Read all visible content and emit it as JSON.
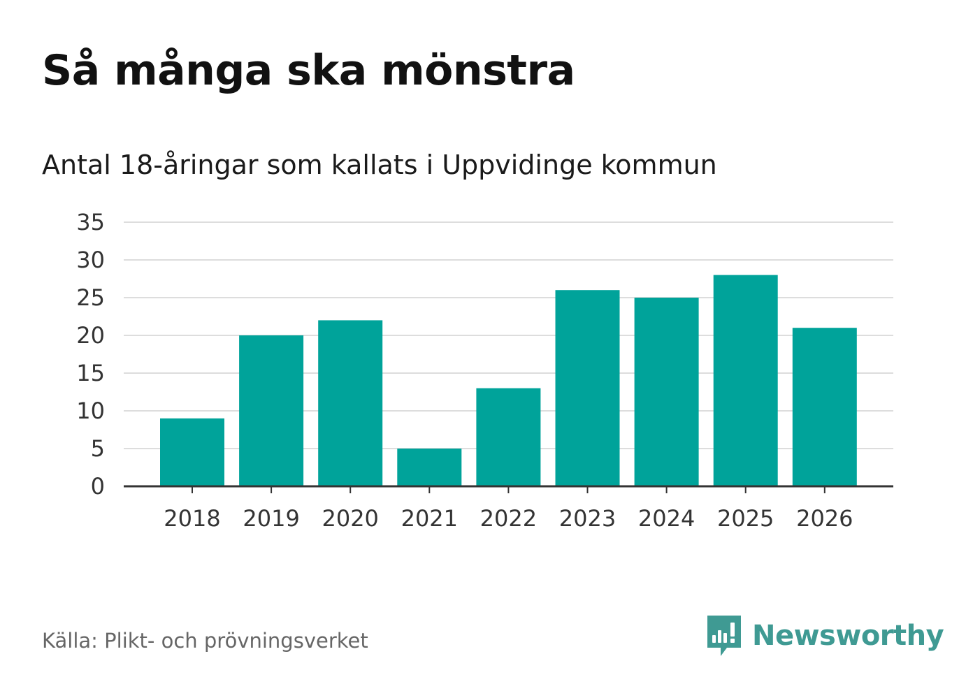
{
  "header": {
    "title": "Så många ska mönstra",
    "subtitle": "Antal 18-åringar som kallats i Uppvidinge kommun"
  },
  "footer": {
    "source": "Källa: Plikt- och prövningsverket",
    "brand": "Newsworthy"
  },
  "colors": {
    "bar": "#00a39a",
    "grid": "#dddddd",
    "axis": "#333333",
    "brand": "#3f9a93"
  },
  "icons": {
    "brand_logo": "newsworthy-logo-icon"
  },
  "chart_data": {
    "type": "bar",
    "title": "Så många ska mönstra",
    "subtitle": "Antal 18-åringar som kallats i Uppvidinge kommun",
    "xlabel": "",
    "ylabel": "",
    "categories": [
      "2018",
      "2019",
      "2020",
      "2021",
      "2022",
      "2023",
      "2024",
      "2025",
      "2026"
    ],
    "values": [
      9,
      20,
      22,
      5,
      13,
      26,
      25,
      28,
      21
    ],
    "ylim": [
      0,
      35
    ],
    "yticks": [
      0,
      5,
      10,
      15,
      20,
      25,
      30,
      35
    ],
    "grid": true,
    "legend": "none"
  }
}
